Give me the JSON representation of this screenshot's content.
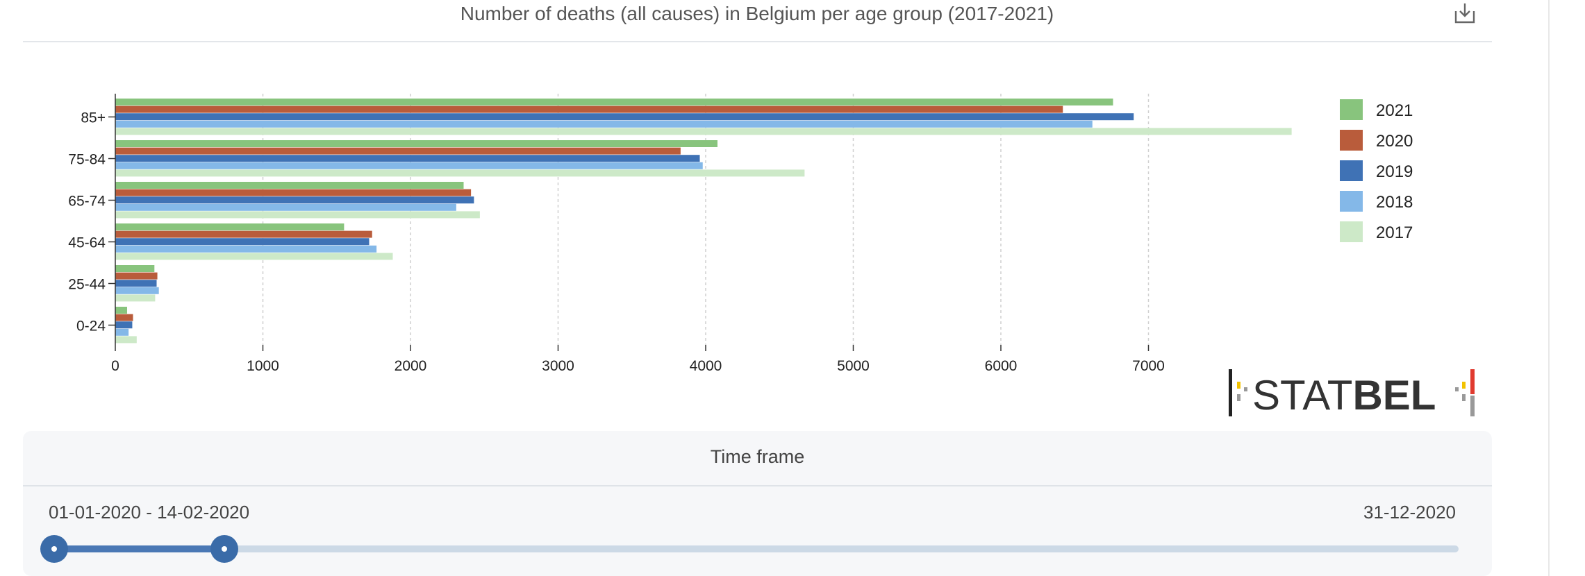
{
  "chart_data": {
    "type": "bar",
    "orientation": "horizontal",
    "title": "Number of deaths (all causes) in Belgium per age group (2017-2021)",
    "categories": [
      "85+",
      "75-84",
      "65-74",
      "45-64",
      "25-44",
      "0-24"
    ],
    "series": [
      {
        "name": "2021",
        "color": "#88c47d",
        "values": [
          6760,
          4080,
          2360,
          1550,
          265,
          80
        ]
      },
      {
        "name": "2020",
        "color": "#b95c3b",
        "values": [
          6420,
          3830,
          2410,
          1740,
          285,
          120
        ]
      },
      {
        "name": "2019",
        "color": "#3f72b5",
        "values": [
          6900,
          3960,
          2430,
          1720,
          280,
          115
        ]
      },
      {
        "name": "2018",
        "color": "#84b8e8",
        "values": [
          6620,
          3980,
          2310,
          1770,
          295,
          90
        ]
      },
      {
        "name": "2017",
        "color": "#cde9c8",
        "values": [
          7970,
          4670,
          2470,
          1880,
          270,
          145
        ]
      }
    ],
    "xticks": [
      0,
      1000,
      2000,
      3000,
      4000,
      5000,
      6000,
      7000
    ],
    "xlim": [
      0,
      8000
    ],
    "grid": "vertical dashed",
    "legend": "top-right"
  },
  "logo": {
    "text_regular": "STAT",
    "text_bold": "BEL"
  },
  "time_frame": {
    "title": "Time frame",
    "start_label": "01-01-2020 - 14-02-2020",
    "end_label": "31-12-2020",
    "selection_fraction": 0.122
  },
  "icons": {
    "download": "download-icon"
  }
}
